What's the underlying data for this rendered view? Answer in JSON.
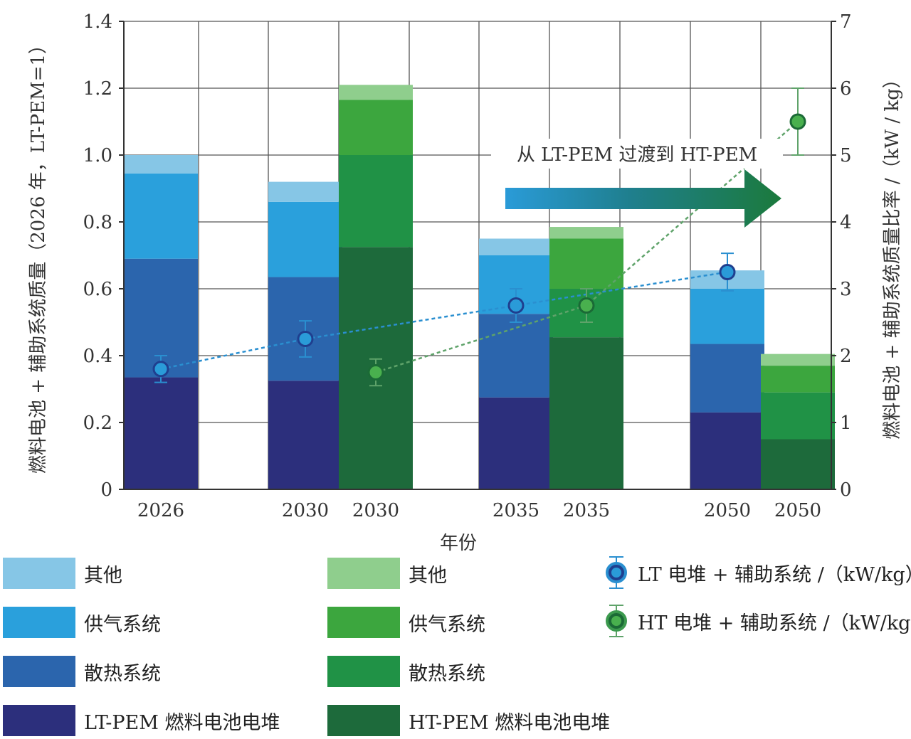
{
  "chart_data": {
    "type": "bar",
    "subtype": "stacked bar with dual-axis line markers",
    "title": "",
    "xlabel": "年份",
    "ylabel": "燃料电池 + 辅助系统质量（2026 年，LT-PEM=1）",
    "ylabel2": "燃料电池 + 辅助系统质量比率 /（kW / kg）",
    "ylim": [
      0,
      1.4
    ],
    "ylim2": [
      0,
      7
    ],
    "yticks": [
      "0",
      "0.2",
      "0.4",
      "0.6",
      "0.8",
      "1.0",
      "1.2",
      "1.4"
    ],
    "yticks2": [
      "0",
      "1",
      "2",
      "3",
      "4",
      "5",
      "6",
      "7"
    ],
    "annotation": "从 LT-PEM 过渡到 HT-PEM",
    "bars": [
      {
        "label": "2026",
        "tech": "LT",
        "stack": 0.335,
        "cooling": 0.355,
        "air": 0.255,
        "other": 0.055
      },
      {
        "label": "2030",
        "tech": "LT",
        "stack": 0.325,
        "cooling": 0.31,
        "air": 0.225,
        "other": 0.06
      },
      {
        "label": "2030",
        "tech": "HT",
        "stack": 0.725,
        "cooling": 0.275,
        "air": 0.165,
        "other": 0.045
      },
      {
        "label": "2035",
        "tech": "LT",
        "stack": 0.275,
        "cooling": 0.25,
        "air": 0.175,
        "other": 0.05
      },
      {
        "label": "2035",
        "tech": "HT",
        "stack": 0.455,
        "cooling": 0.145,
        "air": 0.15,
        "other": 0.035
      },
      {
        "label": "2050",
        "tech": "LT",
        "stack": 0.23,
        "cooling": 0.205,
        "air": 0.165,
        "other": 0.055
      },
      {
        "label": "2050",
        "tech": "HT",
        "stack": 0.15,
        "cooling": 0.14,
        "air": 0.08,
        "other": 0.035
      }
    ],
    "line_series": [
      {
        "name": "LT 电堆 + 辅助系统 /（kW/kg）",
        "bar_index": [
          0,
          1,
          3,
          5
        ],
        "values": [
          1.8,
          2.25,
          2.75,
          3.25
        ],
        "err": [
          0.2,
          0.27,
          0.25,
          0.28
        ]
      },
      {
        "name": "HT 电堆 + 辅助系统 /（kW/kg）",
        "bar_index": [
          2,
          4,
          6
        ],
        "values": [
          1.75,
          2.75,
          5.5
        ],
        "err": [
          0.2,
          0.25,
          0.5
        ]
      }
    ]
  },
  "colors": {
    "lt_stack": "#2c2f7c",
    "lt_cooling": "#2b65ad",
    "lt_air": "#2aa0dc",
    "lt_other": "#86c6e6",
    "ht_stack": "#1d6a3b",
    "ht_cooling": "#209246",
    "ht_air": "#3ca63e",
    "ht_other": "#8fce8d",
    "lt_line": "#2a8fd0",
    "ht_line": "#5fa36a",
    "grid": "#555555"
  },
  "legend": {
    "lt": [
      {
        "key": "lt_other",
        "label": "其他"
      },
      {
        "key": "lt_air",
        "label": "供气系统"
      },
      {
        "key": "lt_cooling",
        "label": "散热系统"
      },
      {
        "key": "lt_stack",
        "label": "LT-PEM 燃料电池电堆"
      }
    ],
    "ht": [
      {
        "key": "ht_other",
        "label": "其他"
      },
      {
        "key": "ht_air",
        "label": "供气系统"
      },
      {
        "key": "ht_cooling",
        "label": "散热系统"
      },
      {
        "key": "ht_stack",
        "label": "HT-PEM 燃料电池电堆"
      }
    ],
    "markers": [
      {
        "label": "LT 电堆 + 辅助系统 /（kW/kg）"
      },
      {
        "label": "HT 电堆 + 辅助系统 /（kW/kg）"
      }
    ]
  }
}
